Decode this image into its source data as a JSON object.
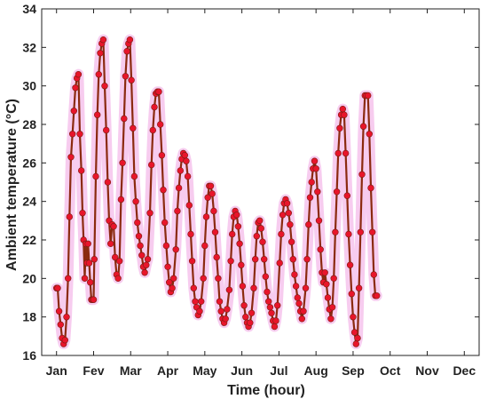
{
  "chart_data": {
    "type": "line",
    "xlabel": "Time (hour)",
    "ylabel": "Ambient temperature (°C)",
    "ylim": [
      16,
      34
    ],
    "yticks": [
      "16",
      "18",
      "20",
      "22",
      "24",
      "26",
      "28",
      "30",
      "32",
      "34"
    ],
    "categories": [
      "Jan",
      "Fev",
      "Mar",
      "Apr",
      "May",
      "Jun",
      "Jul",
      "Aug",
      "Sep",
      "Oct",
      "Nov",
      "Dec"
    ],
    "xlim": [
      -0.4,
      11.4
    ],
    "grid": false,
    "colors": {
      "line": "#8B2A0F",
      "marker": "#E8152B",
      "band": "#F6C3EC"
    },
    "series": [
      {
        "values": [
          [
            0.0,
            19.5
          ],
          [
            0.03,
            19.5
          ],
          [
            0.07,
            18.3
          ],
          [
            0.11,
            17.6
          ],
          [
            0.15,
            16.9
          ],
          [
            0.19,
            16.6
          ],
          [
            0.23,
            16.8
          ],
          [
            0.27,
            18.0
          ],
          [
            0.31,
            20.0
          ],
          [
            0.35,
            23.2
          ],
          [
            0.39,
            26.3
          ],
          [
            0.43,
            27.5
          ],
          [
            0.47,
            28.7
          ],
          [
            0.51,
            29.9
          ],
          [
            0.55,
            30.4
          ],
          [
            0.59,
            30.6
          ],
          [
            0.63,
            27.5
          ],
          [
            0.67,
            25.6
          ],
          [
            0.7,
            23.4
          ],
          [
            0.73,
            22.0
          ],
          [
            0.76,
            20.0
          ],
          [
            0.79,
            21.8
          ],
          [
            0.82,
            20.8
          ],
          [
            0.85,
            21.8
          ],
          [
            0.88,
            20.8
          ],
          [
            0.91,
            19.8
          ],
          [
            0.94,
            18.9
          ],
          [
            0.97,
            18.9
          ],
          [
            1.0,
            18.9
          ],
          [
            1.02,
            21.0
          ],
          [
            1.06,
            25.3
          ],
          [
            1.1,
            28.5
          ],
          [
            1.14,
            30.6
          ],
          [
            1.18,
            31.7
          ],
          [
            1.22,
            32.2
          ],
          [
            1.26,
            32.4
          ],
          [
            1.3,
            30.0
          ],
          [
            1.34,
            27.7
          ],
          [
            1.38,
            25.0
          ],
          [
            1.42,
            23.0
          ],
          [
            1.46,
            21.8
          ],
          [
            1.5,
            22.8
          ],
          [
            1.54,
            22.7
          ],
          [
            1.58,
            21.1
          ],
          [
            1.62,
            20.2
          ],
          [
            1.66,
            20.0
          ],
          [
            1.7,
            20.9
          ],
          [
            1.74,
            24.1
          ],
          [
            1.78,
            26.0
          ],
          [
            1.82,
            28.3
          ],
          [
            1.86,
            30.5
          ],
          [
            1.9,
            31.8
          ],
          [
            1.94,
            32.2
          ],
          [
            1.98,
            32.4
          ],
          [
            2.02,
            30.3
          ],
          [
            2.06,
            27.8
          ],
          [
            2.1,
            25.3
          ],
          [
            2.14,
            24.0
          ],
          [
            2.18,
            22.9
          ],
          [
            2.22,
            22.2
          ],
          [
            2.26,
            21.7
          ],
          [
            2.3,
            21.2
          ],
          [
            2.34,
            20.6
          ],
          [
            2.38,
            20.3
          ],
          [
            2.42,
            20.7
          ],
          [
            2.46,
            21.0
          ],
          [
            2.52,
            23.4
          ],
          [
            2.56,
            25.9
          ],
          [
            2.6,
            27.7
          ],
          [
            2.64,
            28.9
          ],
          [
            2.68,
            29.6
          ],
          [
            2.72,
            29.7
          ],
          [
            2.76,
            29.7
          ],
          [
            2.8,
            28.0
          ],
          [
            2.84,
            26.4
          ],
          [
            2.88,
            24.6
          ],
          [
            2.92,
            22.9
          ],
          [
            2.96,
            21.7
          ],
          [
            3.0,
            20.6
          ],
          [
            3.04,
            19.8
          ],
          [
            3.08,
            19.3
          ],
          [
            3.12,
            19.5
          ],
          [
            3.16,
            20.0
          ],
          [
            3.22,
            21.5
          ],
          [
            3.26,
            23.5
          ],
          [
            3.3,
            24.7
          ],
          [
            3.34,
            25.6
          ],
          [
            3.38,
            26.2
          ],
          [
            3.42,
            26.5
          ],
          [
            3.46,
            26.4
          ],
          [
            3.5,
            26.1
          ],
          [
            3.54,
            25.3
          ],
          [
            3.58,
            23.8
          ],
          [
            3.62,
            22.3
          ],
          [
            3.66,
            20.9
          ],
          [
            3.7,
            19.5
          ],
          [
            3.74,
            18.8
          ],
          [
            3.78,
            18.5
          ],
          [
            3.82,
            18.1
          ],
          [
            3.86,
            18.3
          ],
          [
            3.9,
            18.8
          ],
          [
            3.96,
            20.0
          ],
          [
            4.0,
            21.7
          ],
          [
            4.04,
            23.2
          ],
          [
            4.08,
            24.2
          ],
          [
            4.12,
            24.8
          ],
          [
            4.16,
            24.8
          ],
          [
            4.2,
            24.4
          ],
          [
            4.24,
            23.5
          ],
          [
            4.28,
            22.4
          ],
          [
            4.32,
            21.1
          ],
          [
            4.36,
            20.0
          ],
          [
            4.4,
            18.8
          ],
          [
            4.44,
            18.3
          ],
          [
            4.48,
            17.9
          ],
          [
            4.52,
            17.7
          ],
          [
            4.56,
            17.9
          ],
          [
            4.6,
            18.4
          ],
          [
            4.66,
            19.4
          ],
          [
            4.7,
            20.9
          ],
          [
            4.74,
            22.3
          ],
          [
            4.78,
            23.2
          ],
          [
            4.82,
            23.5
          ],
          [
            4.86,
            23.3
          ],
          [
            4.9,
            22.7
          ],
          [
            4.94,
            21.8
          ],
          [
            4.98,
            20.7
          ],
          [
            5.02,
            19.6
          ],
          [
            5.06,
            18.6
          ],
          [
            5.1,
            18.0
          ],
          [
            5.14,
            17.7
          ],
          [
            5.18,
            17.5
          ],
          [
            5.22,
            17.7
          ],
          [
            5.26,
            18.2
          ],
          [
            5.32,
            19.5
          ],
          [
            5.36,
            21.0
          ],
          [
            5.4,
            22.2
          ],
          [
            5.44,
            22.9
          ],
          [
            5.48,
            23.0
          ],
          [
            5.52,
            22.6
          ],
          [
            5.56,
            21.9
          ],
          [
            5.6,
            21.0
          ],
          [
            5.64,
            20.1
          ],
          [
            5.68,
            19.3
          ],
          [
            5.72,
            18.8
          ],
          [
            5.76,
            18.5
          ],
          [
            5.8,
            18.2
          ],
          [
            5.84,
            17.8
          ],
          [
            5.88,
            17.5
          ],
          [
            5.92,
            17.8
          ],
          [
            5.96,
            18.6
          ],
          [
            6.02,
            20.8
          ],
          [
            6.06,
            22.3
          ],
          [
            6.1,
            23.3
          ],
          [
            6.14,
            23.9
          ],
          [
            6.18,
            24.1
          ],
          [
            6.22,
            23.9
          ],
          [
            6.26,
            23.4
          ],
          [
            6.3,
            22.8
          ],
          [
            6.34,
            21.9
          ],
          [
            6.38,
            21.0
          ],
          [
            6.42,
            20.2
          ],
          [
            6.46,
            19.6
          ],
          [
            6.5,
            19.0
          ],
          [
            6.54,
            18.7
          ],
          [
            6.58,
            18.3
          ],
          [
            6.62,
            17.9
          ],
          [
            6.66,
            18.3
          ],
          [
            6.72,
            19.5
          ],
          [
            6.76,
            21.0
          ],
          [
            6.8,
            22.8
          ],
          [
            6.84,
            24.2
          ],
          [
            6.88,
            25.0
          ],
          [
            6.92,
            25.7
          ],
          [
            6.96,
            26.1
          ],
          [
            7.0,
            25.7
          ],
          [
            7.04,
            24.5
          ],
          [
            7.08,
            23.0
          ],
          [
            7.12,
            21.5
          ],
          [
            7.16,
            20.3
          ],
          [
            7.2,
            19.8
          ],
          [
            7.24,
            20.3
          ],
          [
            7.28,
            19.7
          ],
          [
            7.32,
            19.0
          ],
          [
            7.36,
            18.4
          ],
          [
            7.4,
            17.9
          ],
          [
            7.44,
            18.5
          ],
          [
            7.48,
            20.0
          ],
          [
            7.52,
            22.4
          ],
          [
            7.56,
            24.5
          ],
          [
            7.6,
            26.5
          ],
          [
            7.64,
            27.8
          ],
          [
            7.68,
            28.5
          ],
          [
            7.72,
            28.8
          ],
          [
            7.76,
            28.5
          ],
          [
            7.8,
            26.5
          ],
          [
            7.84,
            24.3
          ],
          [
            7.88,
            22.3
          ],
          [
            7.92,
            20.7
          ],
          [
            7.96,
            19.2
          ],
          [
            8.0,
            18.0
          ],
          [
            8.04,
            17.2
          ],
          [
            8.08,
            16.6
          ],
          [
            8.12,
            16.9
          ],
          [
            8.16,
            19.5
          ],
          [
            8.2,
            22.4
          ],
          [
            8.24,
            25.4
          ],
          [
            8.28,
            27.9
          ],
          [
            8.32,
            29.5
          ],
          [
            8.36,
            29.5
          ],
          [
            8.4,
            29.5
          ],
          [
            8.44,
            27.5
          ],
          [
            8.48,
            24.7
          ],
          [
            8.52,
            22.4
          ],
          [
            8.56,
            20.2
          ],
          [
            8.6,
            19.1
          ],
          [
            8.64,
            19.1
          ]
        ]
      }
    ]
  }
}
